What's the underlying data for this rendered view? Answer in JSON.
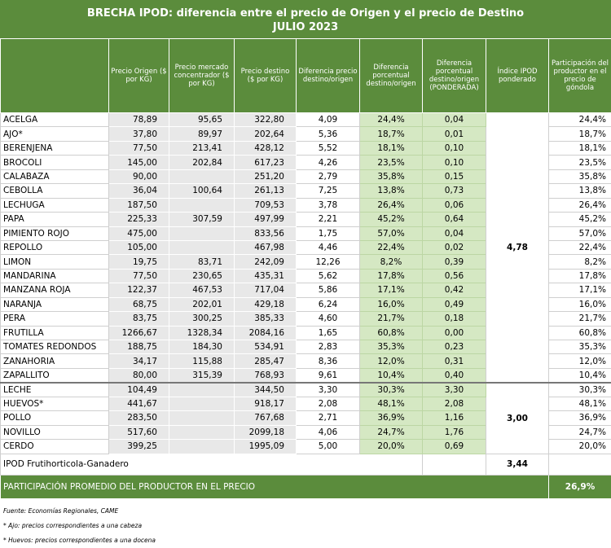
{
  "title": "BRECHA IPOD: diferencia entre el precio de Origen y el precio de Destino",
  "subtitle": "JULIO 2023",
  "table": {
    "columns": [
      "Precio Origen ($ por KG)",
      "Precio mercado concentrador ($ por KG)",
      "Precio destino ($ por KG)",
      "Diferencia precio destino/origen",
      "Diferencia porcentual destino/origen",
      "Diferencia porcentual destino/origen (PONDERADA)",
      "Índice IPOD ponderado",
      "Participación del productor en el precio de góndola"
    ],
    "groups": [
      {
        "indice": "4,78",
        "rows": [
          [
            "ACELGA",
            "78,89",
            "95,65",
            "322,80",
            "4,09",
            "24,4%",
            "0,04",
            "24,4%"
          ],
          [
            "AJO*",
            "37,80",
            "89,97",
            "202,64",
            "5,36",
            "18,7%",
            "0,01",
            "18,7%"
          ],
          [
            "BERENJENA",
            "77,50",
            "213,41",
            "428,12",
            "5,52",
            "18,1%",
            "0,10",
            "18,1%"
          ],
          [
            "BROCOLI",
            "145,00",
            "202,84",
            "617,23",
            "4,26",
            "23,5%",
            "0,10",
            "23,5%"
          ],
          [
            "CALABAZA",
            "90,00",
            null,
            "251,20",
            "2,79",
            "35,8%",
            "0,15",
            "35,8%"
          ],
          [
            "CEBOLLA",
            "36,04",
            "100,64",
            "261,13",
            "7,25",
            "13,8%",
            "0,73",
            "13,8%"
          ],
          [
            "LECHUGA",
            "187,50",
            null,
            "709,53",
            "3,78",
            "26,4%",
            "0,06",
            "26,4%"
          ],
          [
            "PAPA",
            "225,33",
            "307,59",
            "497,99",
            "2,21",
            "45,2%",
            "0,64",
            "45,2%"
          ],
          [
            "PIMIENTO ROJO",
            "475,00",
            null,
            "833,56",
            "1,75",
            "57,0%",
            "0,04",
            "57,0%"
          ],
          [
            "REPOLLO",
            "105,00",
            null,
            "467,98",
            "4,46",
            "22,4%",
            "0,02",
            "22,4%"
          ],
          [
            "LIMON",
            "19,75",
            "83,71",
            "242,09",
            "12,26",
            "8,2%",
            "0,39",
            "8,2%"
          ],
          [
            "MANDARINA",
            "77,50",
            "230,65",
            "435,31",
            "5,62",
            "17,8%",
            "0,56",
            "17,8%"
          ],
          [
            "MANZANA ROJA",
            "122,37",
            "467,53",
            "717,04",
            "5,86",
            "17,1%",
            "0,42",
            "17,1%"
          ],
          [
            "NARANJA",
            "68,75",
            "202,01",
            "429,18",
            "6,24",
            "16,0%",
            "0,49",
            "16,0%"
          ],
          [
            "PERA",
            "83,75",
            "300,25",
            "385,33",
            "4,60",
            "21,7%",
            "0,18",
            "21,7%"
          ],
          [
            "FRUTILLA",
            "1266,67",
            "1328,34",
            "2084,16",
            "1,65",
            "60,8%",
            "0,00",
            "60,8%"
          ],
          [
            "TOMATES REDONDOS",
            "188,75",
            "184,30",
            "534,91",
            "2,83",
            "35,3%",
            "0,23",
            "35,3%"
          ],
          [
            "ZANAHORIA",
            "34,17",
            "115,88",
            "285,47",
            "8,36",
            "12,0%",
            "0,31",
            "12,0%"
          ],
          [
            "ZAPALLITO",
            "80,00",
            "315,39",
            "768,93",
            "9,61",
            "10,4%",
            "0,40",
            "10,4%"
          ]
        ]
      },
      {
        "indice": "3,00",
        "rows": [
          [
            "LECHE",
            "104,49",
            null,
            "344,50",
            "3,30",
            "30,3%",
            "3,30",
            "30,3%"
          ],
          [
            "HUEVOS*",
            "441,67",
            null,
            "918,17",
            "2,08",
            "48,1%",
            "2,08",
            "48,1%"
          ],
          [
            "POLLO",
            "283,50",
            null,
            "767,68",
            "2,71",
            "36,9%",
            "1,16",
            "36,9%"
          ],
          [
            "NOVILLO",
            "517,60",
            null,
            "2099,18",
            "4,06",
            "24,7%",
            "1,76",
            "24,7%"
          ],
          [
            "CERDO",
            "399,25",
            null,
            "1995,09",
            "5,00",
            "20,0%",
            "0,69",
            "20,0%"
          ]
        ]
      }
    ]
  },
  "total": {
    "label": "IPOD Frutihorticola-Ganadero",
    "value": "3,44"
  },
  "average": {
    "label": "PARTICIPACIÓN PROMEDIO DEL PRODUCTOR EN EL PRECIO",
    "value": "26,9%"
  },
  "footnotes": [
    "Fuente: Economías Regionales, CAME",
    "* Ajo: precios correspondientes a una cabeza",
    "* Huevos: precios correspondientes a una docena"
  ]
}
